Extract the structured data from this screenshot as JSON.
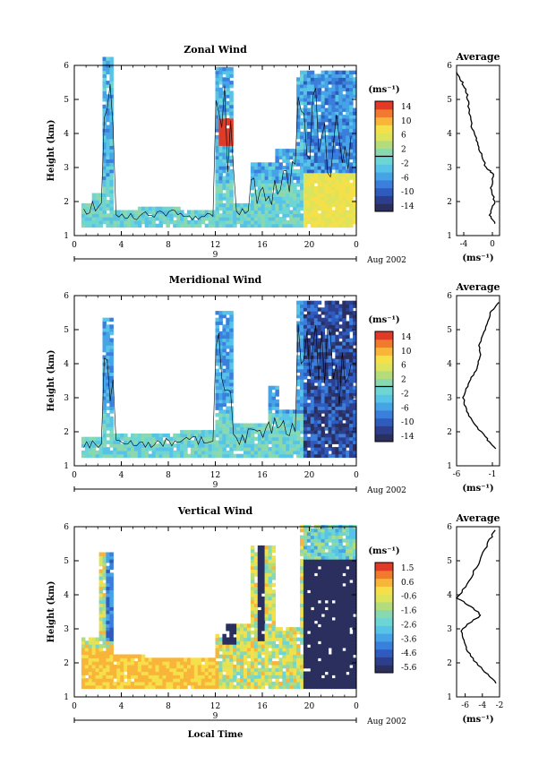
{
  "figure": {
    "xlabel": "Local Time",
    "date_label": "Aug 2002",
    "day_label": "9",
    "colorbar_unit": "(ms⁻¹)",
    "avg_unit": "(ms⁻¹)"
  },
  "chart_data": [
    {
      "type": "heatmap",
      "title": "Zonal Wind",
      "ylabel": "Height (km)",
      "xlim": [
        0,
        24
      ],
      "ylim": [
        1,
        6
      ],
      "x_ticks": [
        "0",
        "4",
        "8",
        "12",
        "16",
        "20",
        "0"
      ],
      "y_ticks": [
        "1",
        "2",
        "3",
        "4",
        "5",
        "6"
      ],
      "colorbar_labels": [
        "14",
        "10",
        "6",
        "2",
        "-2",
        "-6",
        "-10",
        "-14"
      ],
      "colorbar_range": [
        -14,
        14
      ],
      "average": {
        "title": "Average",
        "xlim": [
          -5,
          1
        ],
        "x_ticks": [
          "-4",
          "0"
        ],
        "profile": [
          [
            1.35,
            0.4
          ],
          [
            1.6,
            -0.4
          ],
          [
            2.0,
            0.3
          ],
          [
            2.4,
            -0.2
          ],
          [
            2.8,
            0.2
          ],
          [
            3.0,
            -0.9
          ],
          [
            3.4,
            -1.6
          ],
          [
            3.8,
            -2.2
          ],
          [
            4.2,
            -2.9
          ],
          [
            4.8,
            -3.3
          ],
          [
            5.2,
            -3.6
          ],
          [
            5.5,
            -4.2
          ],
          [
            5.8,
            -5.0
          ]
        ]
      }
    },
    {
      "type": "heatmap",
      "title": "Meridional Wind",
      "ylabel": "Height (km)",
      "xlim": [
        0,
        24
      ],
      "ylim": [
        1,
        6
      ],
      "x_ticks": [
        "0",
        "4",
        "8",
        "12",
        "16",
        "20",
        "0"
      ],
      "y_ticks": [
        "1",
        "2",
        "3",
        "4",
        "5",
        "6"
      ],
      "colorbar_labels": [
        "14",
        "10",
        "6",
        "2",
        "-2",
        "-6",
        "-10",
        "-14"
      ],
      "colorbar_range": [
        -14,
        14
      ],
      "average": {
        "title": "Average",
        "xlim": [
          -6,
          0
        ],
        "x_ticks": [
          "-6",
          "-1"
        ],
        "profile": [
          [
            1.5,
            -0.6
          ],
          [
            1.8,
            -1.8
          ],
          [
            2.2,
            -3.4
          ],
          [
            2.6,
            -4.6
          ],
          [
            3.0,
            -5.1
          ],
          [
            3.4,
            -4.4
          ],
          [
            3.8,
            -3.3
          ],
          [
            4.2,
            -2.7
          ],
          [
            4.6,
            -2.8
          ],
          [
            5.0,
            -2.1
          ],
          [
            5.5,
            -1.2
          ],
          [
            5.8,
            -0.1
          ]
        ]
      }
    },
    {
      "type": "heatmap",
      "title": "Vertical Wind",
      "ylabel": "Height (km)",
      "xlim": [
        0,
        24
      ],
      "ylim": [
        1,
        6
      ],
      "x_ticks": [
        "0",
        "4",
        "8",
        "12",
        "16",
        "20",
        "0"
      ],
      "y_ticks": [
        "1",
        "2",
        "3",
        "4",
        "5",
        "6"
      ],
      "colorbar_labels": [
        "1.5",
        "0.6",
        "-0.6",
        "-1.6",
        "-2.6",
        "-3.6",
        "-4.6",
        "-5.6"
      ],
      "colorbar_range": [
        -6.0,
        2.0
      ],
      "average": {
        "title": "Average",
        "xlim": [
          -7,
          -2
        ],
        "x_ticks": [
          "-6",
          "-4",
          "-2"
        ],
        "profile": [
          [
            1.4,
            -2.3
          ],
          [
            1.8,
            -4.0
          ],
          [
            2.2,
            -5.4
          ],
          [
            2.6,
            -6.2
          ],
          [
            3.0,
            -6.4
          ],
          [
            3.4,
            -4.2
          ],
          [
            3.6,
            -5.0
          ],
          [
            3.9,
            -6.9
          ],
          [
            4.4,
            -5.6
          ],
          [
            5.0,
            -4.3
          ],
          [
            5.5,
            -3.4
          ],
          [
            5.9,
            -2.5
          ]
        ]
      }
    }
  ]
}
